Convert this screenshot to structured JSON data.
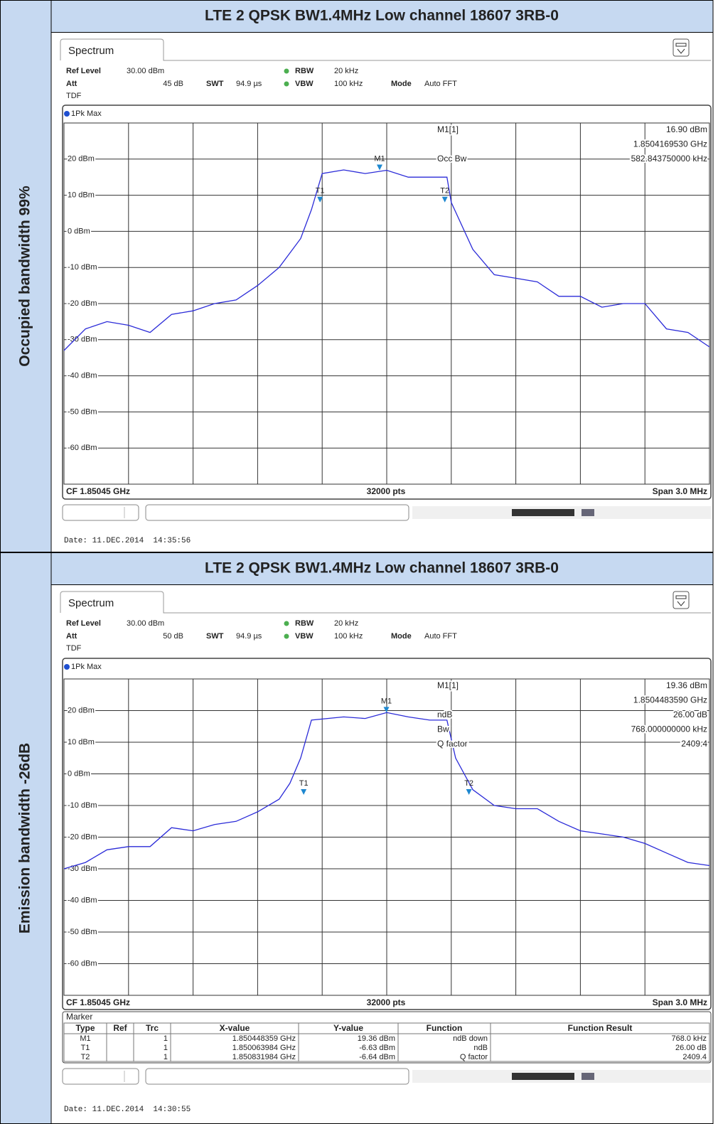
{
  "rows": [
    {
      "label": "Occupied bandwidth 99%",
      "title": "LTE 2 QPSK BW1.4MHz Low channel 18607 3RB-0",
      "screen": {
        "tab": "Spectrum",
        "ref_level_label": "Ref Level",
        "ref_level": "30.00 dBm",
        "rbw_label": "RBW",
        "rbw": "20 kHz",
        "att_label": "Att",
        "att": "45 dB",
        "swt_label": "SWT",
        "swt": "94.9 µs",
        "vbw_label": "VBW",
        "vbw": "100 kHz",
        "mode_label": "Mode",
        "mode": "Auto FFT",
        "tdf": "TDF",
        "trace_label": "1Pk Max",
        "chart": {
          "type": "line",
          "xlim": [
            -1.5,
            1.5
          ],
          "ylim": [
            -70,
            30
          ],
          "yticks": [
            {
              "value": 20,
              "label": "20 dBm"
            },
            {
              "value": 10,
              "label": "10 dBm"
            },
            {
              "value": 0,
              "label": "0 dBm"
            },
            {
              "value": -10,
              "label": "-10 dBm"
            },
            {
              "value": -20,
              "label": "-20 dBm"
            },
            {
              "value": -30,
              "label": "-30 dBm"
            },
            {
              "value": -40,
              "label": "-40 dBm"
            },
            {
              "value": -50,
              "label": "-50 dBm"
            },
            {
              "value": -60,
              "label": "-60 dBm"
            }
          ],
          "color": "#2b2bd8",
          "x": [
            -1.5,
            -1.4,
            -1.3,
            -1.2,
            -1.1,
            -1.0,
            -0.9,
            -0.8,
            -0.7,
            -0.6,
            -0.5,
            -0.4,
            -0.35,
            -0.3,
            -0.2,
            -0.1,
            0,
            0.1,
            0.2,
            0.28,
            0.3,
            0.4,
            0.5,
            0.6,
            0.7,
            0.8,
            0.9,
            1.0,
            1.1,
            1.2,
            1.3,
            1.4,
            1.5
          ],
          "values": [
            -33,
            -27,
            -25,
            -26,
            -28,
            -23,
            -22,
            -20,
            -19,
            -15,
            -10,
            -2,
            6,
            16,
            17,
            16,
            16.9,
            15,
            15,
            15,
            8,
            -5,
            -12,
            -13,
            -14,
            -18,
            -18,
            -21,
            -20,
            -20,
            -27,
            -28,
            -32
          ],
          "markers": [
            {
              "name": "M1",
              "x": -0.033,
              "y": 16.9
            },
            {
              "name": "T1",
              "x": -0.31,
              "y": 8
            },
            {
              "name": "T2",
              "x": 0.27,
              "y": 8
            }
          ]
        },
        "info": [
          {
            "label": "M1[1]",
            "value": "16.90 dBm"
          },
          {
            "value": "1.8504169530 GHz"
          },
          {
            "label": "Occ Bw",
            "value": "582.843750000 kHz"
          }
        ],
        "footer": {
          "cf": "CF 1.85045 GHz",
          "points": "32000 pts",
          "span": "Span 3.0 MHz"
        },
        "date": "Date: 11.DEC.2014  14:35:56"
      }
    },
    {
      "label": "Emission bandwidth -26dB",
      "title": "LTE 2 QPSK BW1.4MHz Low channel 18607 3RB-0",
      "screen": {
        "tab": "Spectrum",
        "ref_level_label": "Ref Level",
        "ref_level": "30.00 dBm",
        "rbw_label": "RBW",
        "rbw": "20 kHz",
        "att_label": "Att",
        "att": "50 dB",
        "swt_label": "SWT",
        "swt": "94.9 µs",
        "vbw_label": "VBW",
        "vbw": "100 kHz",
        "mode_label": "Mode",
        "mode": "Auto FFT",
        "tdf": "TDF",
        "trace_label": "1Pk Max",
        "chart": {
          "type": "line",
          "xlim": [
            -1.5,
            1.5
          ],
          "ylim": [
            -70,
            30
          ],
          "yticks": [
            {
              "value": 20,
              "label": "20 dBm"
            },
            {
              "value": 10,
              "label": "10 dBm"
            },
            {
              "value": 0,
              "label": "0 dBm"
            },
            {
              "value": -10,
              "label": "-10 dBm"
            },
            {
              "value": -20,
              "label": "-20 dBm"
            },
            {
              "value": -30,
              "label": "-30 dBm"
            },
            {
              "value": -40,
              "label": "-40 dBm"
            },
            {
              "value": -50,
              "label": "-50 dBm"
            },
            {
              "value": -60,
              "label": "-60 dBm"
            }
          ],
          "color": "#2b2bd8",
          "x": [
            -1.5,
            -1.4,
            -1.3,
            -1.2,
            -1.1,
            -1.0,
            -0.9,
            -0.8,
            -0.7,
            -0.6,
            -0.5,
            -0.45,
            -0.4,
            -0.35,
            -0.2,
            -0.1,
            0,
            0.1,
            0.2,
            0.28,
            0.32,
            0.4,
            0.5,
            0.6,
            0.7,
            0.8,
            0.9,
            1.0,
            1.1,
            1.2,
            1.3,
            1.4,
            1.5
          ],
          "values": [
            -30,
            -28,
            -24,
            -23,
            -23,
            -17,
            -18,
            -16,
            -15,
            -12,
            -8,
            -3,
            5,
            17,
            18,
            17.5,
            19.36,
            18,
            17,
            17,
            5,
            -5,
            -10,
            -11,
            -11,
            -15,
            -18,
            -19,
            -20,
            -22,
            -25,
            -28,
            -29
          ],
          "markers": [
            {
              "name": "M1",
              "x": -0.0016,
              "y": 19.36
            },
            {
              "name": "T1",
              "x": -0.386,
              "y": -6.63
            },
            {
              "name": "T2",
              "x": 0.382,
              "y": -6.64
            }
          ]
        },
        "info": [
          {
            "label": "M1[1]",
            "value": "19.36 dBm"
          },
          {
            "value": "1.8504483590 GHz"
          },
          {
            "label": "ndB",
            "value": "26.00 dB"
          },
          {
            "label": "Bw",
            "value": "768.000000000 kHz"
          },
          {
            "label": "Q factor",
            "value": "2409.4"
          }
        ],
        "footer": {
          "cf": "CF 1.85045 GHz",
          "points": "32000 pts",
          "span": "Span 3.0 MHz"
        },
        "marker_table": {
          "title": "Marker",
          "columns": [
            "Type",
            "Ref",
            "Trc",
            "X-value",
            "Y-value",
            "Function",
            "Function Result"
          ],
          "rows": [
            [
              "M1",
              "",
              "1",
              "1.850448359 GHz",
              "19.36 dBm",
              "ndB down",
              "768.0 kHz"
            ],
            [
              "T1",
              "",
              "1",
              "1.850063984 GHz",
              "-6.63 dBm",
              "ndB",
              "26.00 dB"
            ],
            [
              "T2",
              "",
              "1",
              "1.850831984 GHz",
              "-6.64 dBm",
              "Q factor",
              "2409.4"
            ]
          ]
        },
        "date": "Date: 11.DEC.2014  14:30:55"
      }
    }
  ]
}
